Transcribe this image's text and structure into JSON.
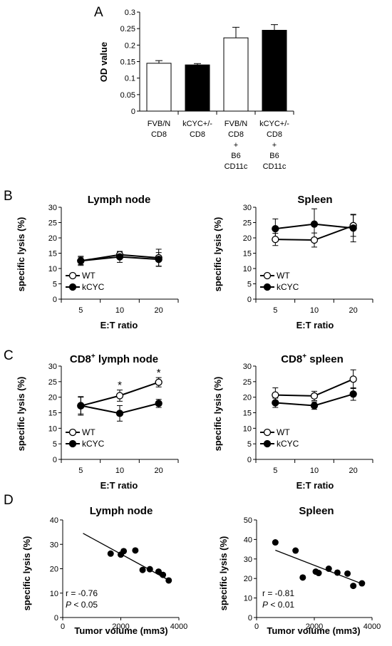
{
  "panel_letters": [
    "A",
    "B",
    "C",
    "D"
  ],
  "stats": {
    "lymph": {
      "r": "r = -0.76",
      "p_sym": "P",
      "p_rest": " < 0.05"
    },
    "spleen": {
      "r": "r = -0.81",
      "p_sym": "P",
      "p_rest": " < 0.01"
    }
  },
  "chart_data": [
    {
      "panel": "A",
      "type": "bar",
      "ylabel": "OD value",
      "ylim": [
        0,
        0.3
      ],
      "yticks": [
        "0",
        "0.05",
        "0.1",
        "0.15",
        "0.2",
        "0.25",
        "0.3"
      ],
      "categories": [
        [
          "FVB/N",
          "CD8"
        ],
        [
          "kCYC+/-",
          "CD8"
        ],
        [
          "FVB/N",
          "CD8",
          "+",
          "B6",
          "CD11c"
        ],
        [
          "kCYC+/-",
          "CD8",
          "+",
          "B6",
          "CD11c"
        ]
      ],
      "values": [
        0.145,
        0.14,
        0.222,
        0.245
      ],
      "errors": [
        0.008,
        0.004,
        0.032,
        0.017
      ],
      "fills": [
        "#ffffff",
        "#000000",
        "#ffffff",
        "#000000"
      ],
      "grid": false
    },
    {
      "panel": "B-left",
      "type": "line",
      "title": "Lymph node",
      "xlabel": "E:T ratio",
      "ylabel": "specific lysis (%)",
      "categories": [
        "5",
        "10",
        "20"
      ],
      "ylim": [
        0,
        30
      ],
      "yticks": [
        "0",
        "5",
        "10",
        "15",
        "20",
        "25",
        "30"
      ],
      "series": [
        {
          "name": "WT",
          "values": [
            12.5,
            14.5,
            13.5
          ],
          "errors": [
            1.2,
            1.0,
            2.8
          ],
          "marker": "open"
        },
        {
          "name": "kCYC",
          "values": [
            12.5,
            13.8,
            13.0
          ],
          "errors": [
            1.5,
            1.8,
            2.2
          ],
          "marker": "filled"
        }
      ],
      "legend": "bottom-left"
    },
    {
      "panel": "B-right",
      "type": "line",
      "title": "Spleen",
      "xlabel": "E:T ratio",
      "ylabel": "specific lysis (%)",
      "categories": [
        "5",
        "10",
        "20"
      ],
      "ylim": [
        0,
        30
      ],
      "yticks": [
        "0",
        "5",
        "10",
        "15",
        "20",
        "25",
        "30"
      ],
      "series": [
        {
          "name": "WT",
          "values": [
            19.5,
            19.3,
            24.0
          ],
          "errors": [
            2.0,
            2.3,
            3.5
          ],
          "marker": "open"
        },
        {
          "name": "kCYC",
          "values": [
            23.0,
            24.5,
            23.2
          ],
          "errors": [
            3.2,
            5.0,
            4.5
          ],
          "marker": "filled"
        }
      ],
      "legend": "bottom-left"
    },
    {
      "panel": "C-left",
      "type": "line",
      "title_main": "CD8",
      "title_sup": "+",
      "title_rest": " lymph node",
      "xlabel": "E:T ratio",
      "ylabel": "specific lysis (%)",
      "categories": [
        "5",
        "10",
        "20"
      ],
      "ylim": [
        0,
        30
      ],
      "yticks": [
        "0",
        "5",
        "10",
        "15",
        "20",
        "25",
        "30"
      ],
      "series": [
        {
          "name": "WT",
          "values": [
            17.2,
            20.5,
            24.8
          ],
          "errors": [
            3.0,
            1.8,
            1.5
          ],
          "marker": "open"
        },
        {
          "name": "kCYC",
          "values": [
            17.3,
            14.8,
            18.0
          ],
          "errors": [
            2.7,
            2.5,
            1.3
          ],
          "marker": "filled"
        }
      ],
      "asterisks": [
        "",
        "*",
        "*"
      ],
      "legend": "bottom-left"
    },
    {
      "panel": "C-right",
      "type": "line",
      "title_main": "CD8",
      "title_sup": "+",
      "title_rest": " spleen",
      "xlabel": "E:T ratio",
      "ylabel": "specific lysis (%)",
      "categories": [
        "5",
        "10",
        "20"
      ],
      "ylim": [
        0,
        30
      ],
      "yticks": [
        "0",
        "5",
        "10",
        "15",
        "20",
        "25",
        "30"
      ],
      "series": [
        {
          "name": "WT",
          "values": [
            20.7,
            20.4,
            25.8
          ],
          "errors": [
            2.3,
            1.5,
            3.0
          ],
          "marker": "open"
        },
        {
          "name": "kCYC",
          "values": [
            18.2,
            17.3,
            21.0
          ],
          "errors": [
            1.5,
            1.2,
            2.0
          ],
          "marker": "filled"
        }
      ],
      "legend": "bottom-left"
    },
    {
      "panel": "D-left",
      "type": "scatter",
      "title": "Lymph node",
      "xlabel": "Tumor volume (mm3)",
      "ylabel": "specific lysis (%)",
      "xlim": [
        0,
        4000
      ],
      "ylim": [
        0,
        40
      ],
      "xticks": [
        "0",
        "2000",
        "4000"
      ],
      "yticks": [
        "0",
        "10",
        "20",
        "30",
        "40"
      ],
      "points": [
        [
          1650,
          26.2
        ],
        [
          2000,
          25.8
        ],
        [
          2100,
          27.2
        ],
        [
          2500,
          27.5
        ],
        [
          2750,
          19.5
        ],
        [
          3000,
          19.8
        ],
        [
          3300,
          18.8
        ],
        [
          3450,
          17.5
        ],
        [
          3650,
          15.2
        ]
      ],
      "trendline": [
        [
          700,
          34.5
        ],
        [
          3700,
          15.0
        ]
      ]
    },
    {
      "panel": "D-right",
      "type": "scatter",
      "title": "Spleen",
      "xlabel": "Tumor volume (mm3)",
      "ylabel": "specific lysis (%)",
      "xlim": [
        0,
        4000
      ],
      "ylim": [
        0,
        50
      ],
      "xticks": [
        "0",
        "2000",
        "4000"
      ],
      "yticks": [
        "0",
        "10",
        "20",
        "30",
        "40",
        "50"
      ],
      "points": [
        [
          650,
          38.5
        ],
        [
          1350,
          34.3
        ],
        [
          1600,
          20.5
        ],
        [
          2050,
          23.5
        ],
        [
          2150,
          22.8
        ],
        [
          2500,
          25.0
        ],
        [
          2800,
          23.0
        ],
        [
          3150,
          22.5
        ],
        [
          3350,
          16.2
        ],
        [
          3650,
          17.5
        ]
      ],
      "trendline": [
        [
          650,
          34.5
        ],
        [
          3700,
          17.0
        ]
      ]
    }
  ]
}
